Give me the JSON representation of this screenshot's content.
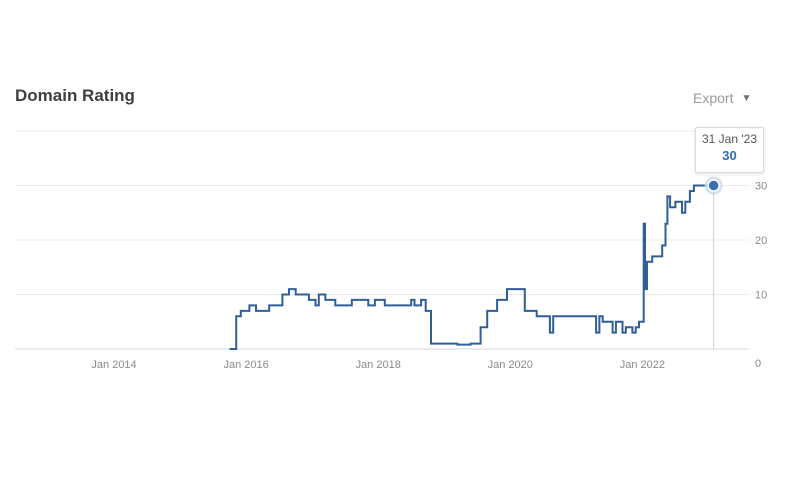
{
  "header": {
    "title": "Domain Rating",
    "export_label": "Export",
    "export_icon": "caret-down-icon"
  },
  "tooltip": {
    "date": "31 Jan '23",
    "value": "30"
  },
  "colors": {
    "line": "#2f5f96",
    "grid": "#ececec",
    "marker": "#3a6fb0",
    "tick": "#8a8a8a"
  },
  "chart_data": {
    "type": "line",
    "title": "Domain Rating",
    "xlabel": "",
    "ylabel": "",
    "xlim": [
      2012.5,
      2023.6
    ],
    "ylim": [
      0,
      40
    ],
    "y_ticks": [
      0,
      10,
      20,
      30
    ],
    "x_ticks": [
      {
        "value": 2014.0,
        "label": "Jan 2014"
      },
      {
        "value": 2016.0,
        "label": "Jan 2016"
      },
      {
        "value": 2018.0,
        "label": "Jan 2018"
      },
      {
        "value": 2020.0,
        "label": "Jan 2020"
      },
      {
        "value": 2022.0,
        "label": "Jan 2022"
      }
    ],
    "grid": true,
    "legend": "none",
    "series": [
      {
        "points": [
          [
            2015.75,
            0
          ],
          [
            2015.85,
            0
          ],
          [
            2015.85,
            6
          ],
          [
            2015.92,
            6
          ],
          [
            2015.92,
            7
          ],
          [
            2016.05,
            7
          ],
          [
            2016.05,
            8
          ],
          [
            2016.15,
            8
          ],
          [
            2016.15,
            7
          ],
          [
            2016.35,
            7
          ],
          [
            2016.35,
            8
          ],
          [
            2016.55,
            8
          ],
          [
            2016.55,
            10
          ],
          [
            2016.65,
            10
          ],
          [
            2016.65,
            11
          ],
          [
            2016.75,
            11
          ],
          [
            2016.75,
            10
          ],
          [
            2016.95,
            10
          ],
          [
            2016.95,
            9
          ],
          [
            2017.05,
            9
          ],
          [
            2017.05,
            8
          ],
          [
            2017.1,
            8
          ],
          [
            2017.1,
            10
          ],
          [
            2017.2,
            10
          ],
          [
            2017.2,
            9
          ],
          [
            2017.35,
            9
          ],
          [
            2017.35,
            8
          ],
          [
            2017.6,
            8
          ],
          [
            2017.6,
            9
          ],
          [
            2017.85,
            9
          ],
          [
            2017.85,
            8
          ],
          [
            2017.95,
            8
          ],
          [
            2017.95,
            9
          ],
          [
            2018.1,
            9
          ],
          [
            2018.1,
            8
          ],
          [
            2018.5,
            8
          ],
          [
            2018.5,
            9
          ],
          [
            2018.55,
            9
          ],
          [
            2018.55,
            8
          ],
          [
            2018.65,
            8
          ],
          [
            2018.65,
            9
          ],
          [
            2018.72,
            9
          ],
          [
            2018.72,
            7
          ],
          [
            2018.8,
            7
          ],
          [
            2018.8,
            1
          ],
          [
            2018.95,
            1
          ],
          [
            2019.2,
            1
          ],
          [
            2019.2,
            0.8
          ],
          [
            2019.4,
            0.8
          ],
          [
            2019.4,
            1
          ],
          [
            2019.55,
            1
          ],
          [
            2019.55,
            4
          ],
          [
            2019.65,
            4
          ],
          [
            2019.65,
            7
          ],
          [
            2019.8,
            7
          ],
          [
            2019.8,
            9
          ],
          [
            2019.95,
            9
          ],
          [
            2019.95,
            11
          ],
          [
            2020.05,
            11
          ],
          [
            2020.22,
            11
          ],
          [
            2020.22,
            7
          ],
          [
            2020.4,
            7
          ],
          [
            2020.4,
            6
          ],
          [
            2020.55,
            6
          ],
          [
            2020.6,
            6
          ],
          [
            2020.6,
            3
          ],
          [
            2020.65,
            3
          ],
          [
            2020.65,
            6
          ],
          [
            2021.3,
            6
          ],
          [
            2021.3,
            3
          ],
          [
            2021.35,
            3
          ],
          [
            2021.35,
            6
          ],
          [
            2021.4,
            6
          ],
          [
            2021.4,
            5
          ],
          [
            2021.55,
            5
          ],
          [
            2021.55,
            3
          ],
          [
            2021.6,
            3
          ],
          [
            2021.6,
            5
          ],
          [
            2021.7,
            5
          ],
          [
            2021.7,
            3
          ],
          [
            2021.75,
            3
          ],
          [
            2021.75,
            4
          ],
          [
            2021.85,
            4
          ],
          [
            2021.85,
            3
          ],
          [
            2021.9,
            3
          ],
          [
            2021.9,
            4
          ],
          [
            2021.95,
            4
          ],
          [
            2021.95,
            5
          ],
          [
            2022.02,
            5
          ],
          [
            2022.02,
            23
          ],
          [
            2022.04,
            23
          ],
          [
            2022.04,
            11
          ],
          [
            2022.07,
            11
          ],
          [
            2022.07,
            16
          ],
          [
            2022.15,
            16
          ],
          [
            2022.15,
            17
          ],
          [
            2022.3,
            17
          ],
          [
            2022.3,
            19
          ],
          [
            2022.35,
            19
          ],
          [
            2022.35,
            23
          ],
          [
            2022.38,
            23
          ],
          [
            2022.38,
            28
          ],
          [
            2022.42,
            28
          ],
          [
            2022.42,
            26
          ],
          [
            2022.5,
            26
          ],
          [
            2022.5,
            27
          ],
          [
            2022.6,
            27
          ],
          [
            2022.6,
            25
          ],
          [
            2022.65,
            25
          ],
          [
            2022.65,
            27
          ],
          [
            2022.72,
            27
          ],
          [
            2022.72,
            29
          ],
          [
            2022.78,
            29
          ],
          [
            2022.78,
            30
          ],
          [
            2023.08,
            30
          ]
        ]
      }
    ]
  }
}
